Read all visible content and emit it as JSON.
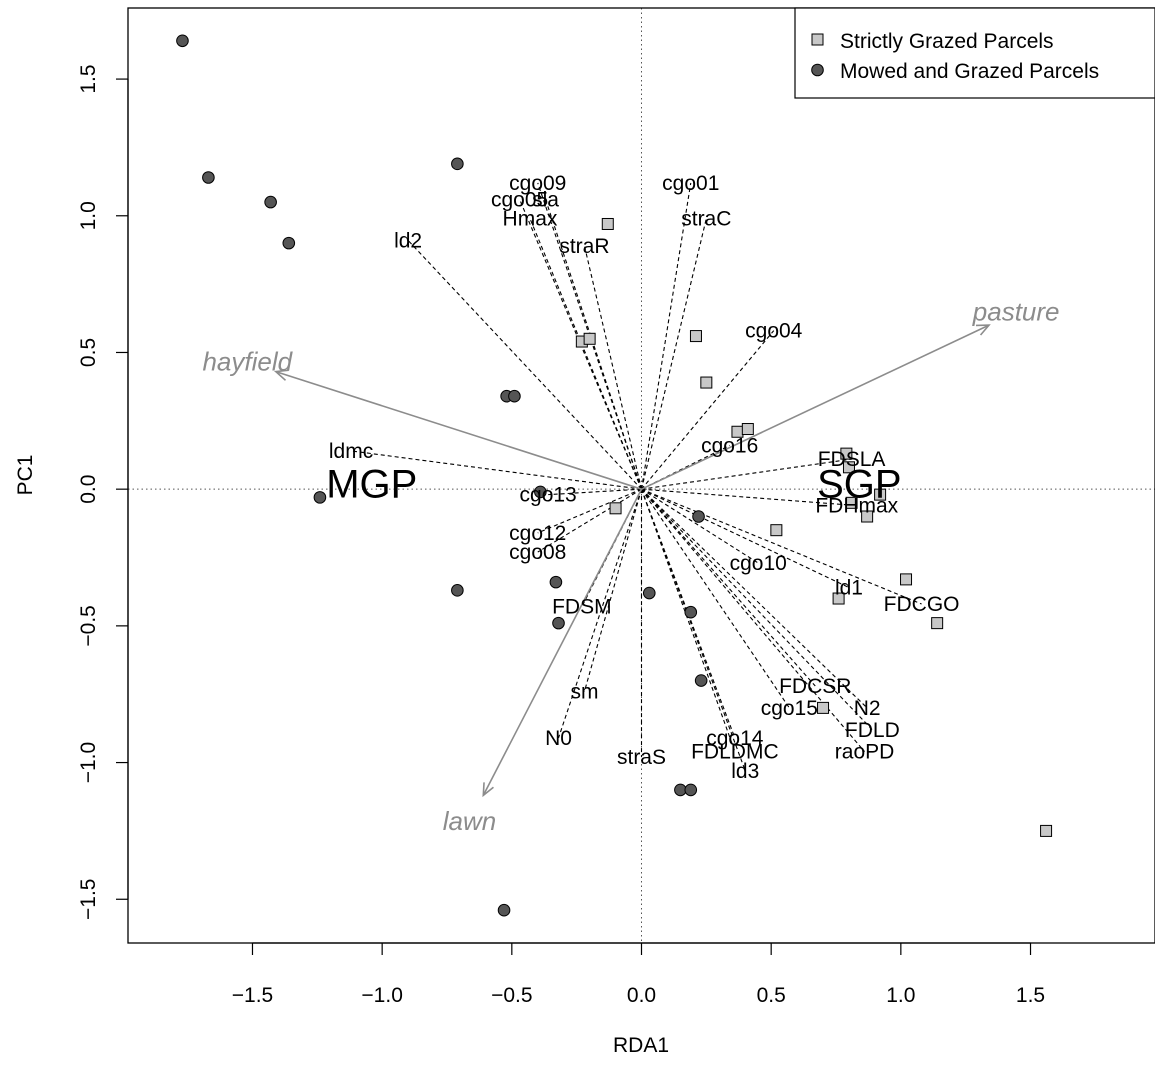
{
  "chart_data": {
    "type": "scatter",
    "title": "",
    "xlabel": "RDA1",
    "ylabel": "PC1",
    "xlim": [
      -1.98,
      1.98
    ],
    "ylim": [
      -1.66,
      1.76
    ],
    "x_ticks": [
      -1.5,
      -1.0,
      -0.5,
      0.0,
      0.5,
      1.0,
      1.5
    ],
    "x_tick_labels": [
      "−1.5",
      "−1.0",
      "−0.5",
      "0.0",
      "0.5",
      "1.0",
      "1.5"
    ],
    "y_ticks": [
      -1.5,
      -1.0,
      -0.5,
      0.0,
      0.5,
      1.0,
      1.5
    ],
    "y_tick_labels": [
      "−1.5",
      "−1.0",
      "−0.5",
      "0.0",
      "0.5",
      "1.0",
      "1.5"
    ],
    "zero_lines": true,
    "legend_position": "top-right",
    "legend": [
      {
        "label": "Strictly Grazed Parcels",
        "marker": "square",
        "color": "#c8c8c8"
      },
      {
        "label": "Mowed and Grazed Parcels",
        "marker": "circle",
        "color": "#555555"
      }
    ],
    "series": [
      {
        "name": "Strictly Grazed Parcels",
        "marker": "square",
        "fill": "#c8c8c8",
        "points": [
          [
            -0.13,
            0.97
          ],
          [
            -0.23,
            0.54
          ],
          [
            -0.2,
            0.55
          ],
          [
            0.21,
            0.56
          ],
          [
            0.25,
            0.39
          ],
          [
            0.37,
            0.21
          ],
          [
            0.41,
            0.22
          ],
          [
            0.79,
            0.13
          ],
          [
            0.8,
            0.08
          ],
          [
            0.81,
            -0.05
          ],
          [
            0.87,
            -0.1
          ],
          [
            0.92,
            -0.02
          ],
          [
            0.52,
            -0.15
          ],
          [
            -0.1,
            -0.07
          ],
          [
            1.02,
            -0.33
          ],
          [
            0.76,
            -0.4
          ],
          [
            1.14,
            -0.49
          ],
          [
            0.7,
            -0.8
          ],
          [
            1.56,
            -1.25
          ]
        ]
      },
      {
        "name": "Mowed and Grazed Parcels",
        "marker": "circle",
        "fill": "#555555",
        "points": [
          [
            -1.77,
            1.64
          ],
          [
            -1.67,
            1.14
          ],
          [
            -1.43,
            1.05
          ],
          [
            -1.36,
            0.9
          ],
          [
            -0.71,
            1.19
          ],
          [
            -0.52,
            0.34
          ],
          [
            -0.49,
            0.34
          ],
          [
            -1.24,
            -0.03
          ],
          [
            -0.39,
            -0.01
          ],
          [
            0.22,
            -0.1
          ],
          [
            -0.71,
            -0.37
          ],
          [
            -0.33,
            -0.34
          ],
          [
            -0.32,
            -0.49
          ],
          [
            0.03,
            -0.38
          ],
          [
            0.19,
            -0.45
          ],
          [
            0.23,
            -0.7
          ],
          [
            0.15,
            -1.1
          ],
          [
            0.19,
            -1.1
          ],
          [
            -0.53,
            -1.54
          ]
        ]
      }
    ],
    "trait_vectors": [
      {
        "label": "cgo09",
        "x": -0.4,
        "y": 1.12
      },
      {
        "label": "cgo05",
        "x": -0.47,
        "y": 1.06
      },
      {
        "label": "sla",
        "x": -0.37,
        "y": 1.06
      },
      {
        "label": "Hmax",
        "x": -0.43,
        "y": 0.99
      },
      {
        "label": "ld2",
        "x": -0.9,
        "y": 0.91
      },
      {
        "label": "straR",
        "x": -0.22,
        "y": 0.89
      },
      {
        "label": "cgo01",
        "x": 0.19,
        "y": 1.12
      },
      {
        "label": "straC",
        "x": 0.25,
        "y": 0.99
      },
      {
        "label": "cgo04",
        "x": 0.51,
        "y": 0.58
      },
      {
        "label": "cgo16",
        "x": 0.34,
        "y": 0.16
      },
      {
        "label": "FDSLA",
        "x": 0.81,
        "y": 0.11
      },
      {
        "label": "ldmc",
        "x": -1.12,
        "y": 0.14
      },
      {
        "label": "cgo13",
        "x": -0.36,
        "y": -0.02
      },
      {
        "label": "FDHmax",
        "x": 0.83,
        "y": -0.06
      },
      {
        "label": "cgo12",
        "x": -0.4,
        "y": -0.16
      },
      {
        "label": "cgo08",
        "x": -0.4,
        "y": -0.23
      },
      {
        "label": "cgo10",
        "x": 0.45,
        "y": -0.27
      },
      {
        "label": "ld1",
        "x": 0.8,
        "y": -0.36
      },
      {
        "label": "FDCGO",
        "x": 1.08,
        "y": -0.42
      },
      {
        "label": "FDSM",
        "x": -0.23,
        "y": -0.43
      },
      {
        "label": "sm",
        "x": -0.22,
        "y": -0.74
      },
      {
        "label": "N0",
        "x": -0.32,
        "y": -0.91
      },
      {
        "label": "FDCSR",
        "x": 0.67,
        "y": -0.72
      },
      {
        "label": "N2",
        "x": 0.87,
        "y": -0.8
      },
      {
        "label": "cgo15",
        "x": 0.57,
        "y": -0.8
      },
      {
        "label": "FDLD",
        "x": 0.89,
        "y": -0.88
      },
      {
        "label": "cgo14",
        "x": 0.36,
        "y": -0.91
      },
      {
        "label": "raoPD",
        "x": 0.86,
        "y": -0.96
      },
      {
        "label": "FDLDMC",
        "x": 0.36,
        "y": -0.96
      },
      {
        "label": "straS",
        "x": 0.0,
        "y": -0.98
      },
      {
        "label": "ld3",
        "x": 0.4,
        "y": -1.03
      }
    ],
    "environment_vectors": [
      {
        "label": "hayfield",
        "x": -1.41,
        "y": 0.43,
        "color": "#8c8c8c"
      },
      {
        "label": "pasture",
        "x": 1.34,
        "y": 0.6,
        "color": "#8c8c8c"
      },
      {
        "label": "lawn",
        "x": -0.61,
        "y": -1.12,
        "color": "#8c8c8c"
      }
    ],
    "group_labels": [
      {
        "label": "MGP",
        "x": -1.04,
        "y": 0.02
      },
      {
        "label": "SGP",
        "x": 0.84,
        "y": 0.02
      }
    ]
  }
}
